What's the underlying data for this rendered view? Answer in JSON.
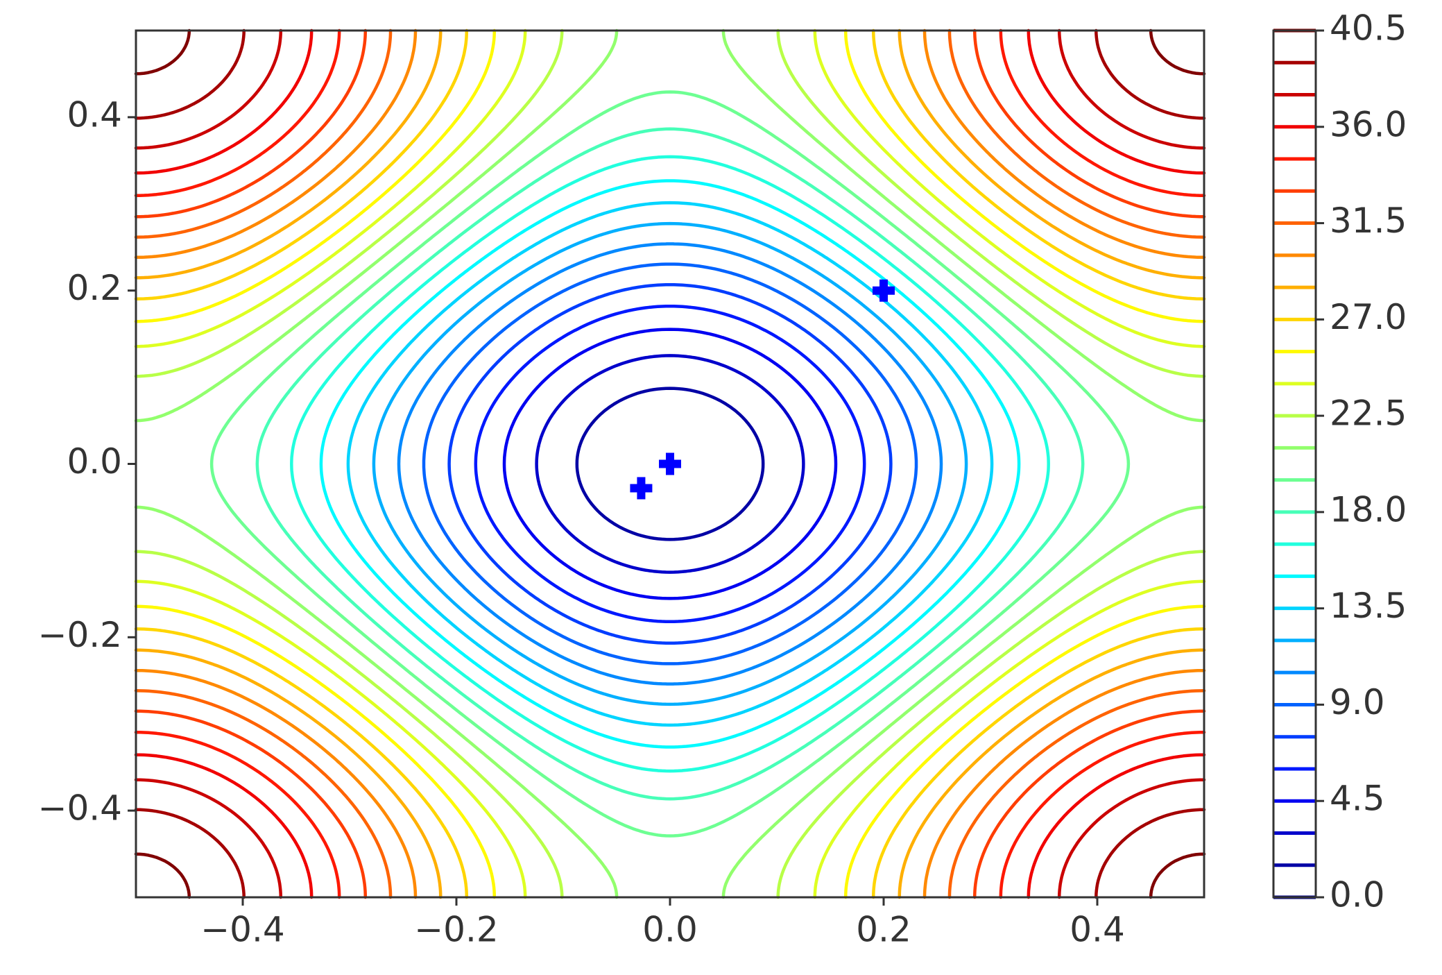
{
  "chart_data": {
    "type": "contour",
    "colormap": "jet",
    "levels": [
      0,
      1.5,
      3,
      4.5,
      6,
      7.5,
      9,
      10.5,
      12,
      13.5,
      15,
      16.5,
      18,
      19.5,
      21,
      22.5,
      24,
      25.5,
      27,
      28.5,
      30,
      31.5,
      33,
      34.5,
      36,
      37.5,
      39,
      40.5
    ],
    "xlim": [
      -0.5,
      0.5
    ],
    "ylim": [
      -0.5,
      0.5
    ],
    "xticks": [
      {
        "value": -0.4,
        "label": "−0.4"
      },
      {
        "value": -0.2,
        "label": "−0.2"
      },
      {
        "value": 0,
        "label": "0.0"
      },
      0.2,
      0.4
    ],
    "yticks": [
      {
        "value": -0.4,
        "label": "−0.4"
      },
      {
        "value": -0.2,
        "label": "−0.2"
      },
      {
        "value": 0,
        "label": "0.0"
      },
      0.2,
      0.4
    ],
    "colorbar_lim": [
      0,
      40.5
    ],
    "colorbar_ticks": [
      {
        "value": 0,
        "label": "0.0"
      },
      4.5,
      {
        "value": 9,
        "label": "9.0"
      },
      13.5,
      {
        "value": 18,
        "label": "18.0"
      },
      22.5,
      {
        "value": 27,
        "label": "27.0"
      },
      31.5,
      {
        "value": 36,
        "label": "36.0"
      },
      40.5
    ],
    "points": {
      "x": [
        -0.027,
        0,
        0.2
      ],
      "y": [
        -0.028,
        0,
        0.2
      ],
      "color": "#0000ff"
    }
  }
}
